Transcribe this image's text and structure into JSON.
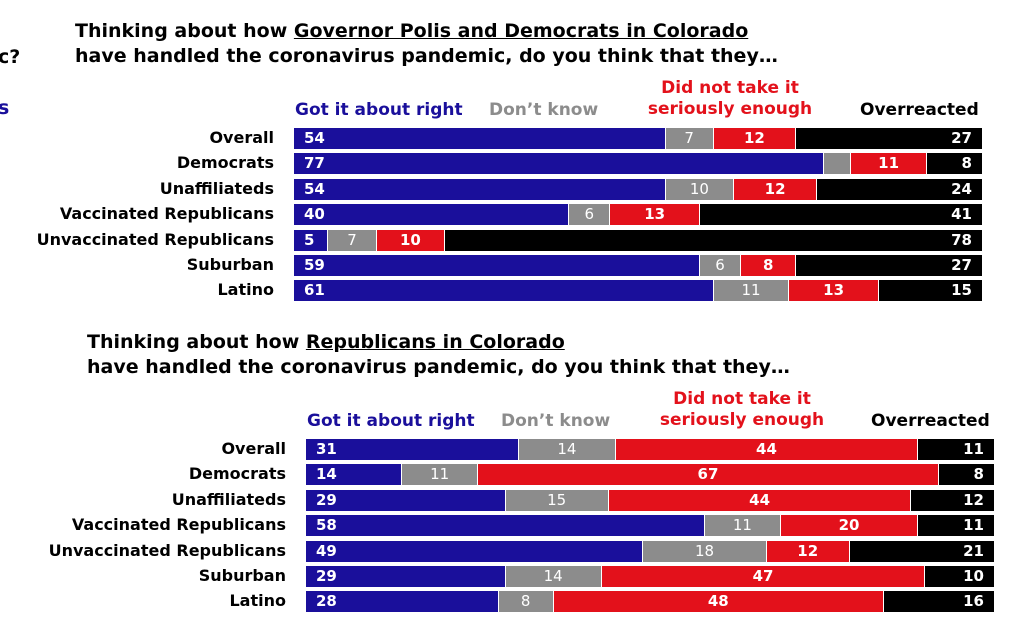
{
  "cut_text": {
    "left_question": "c?",
    "left_subtitle": "s"
  },
  "chart_data": [
    {
      "type": "bar",
      "stacked": true,
      "orientation": "horizontal",
      "title_line1_pre": "Thinking about how ",
      "title_line1_underlined": "Governor Polis and Democrats in Colorado",
      "title_line2": "have handled the coronavirus pandemic, do you think that they…",
      "legend": [
        {
          "label": "Got it about right",
          "color": "#1a0f9b"
        },
        {
          "label": "Don’t know",
          "color": "#8c8c8c"
        },
        {
          "label": "Did not take it seriously enough",
          "label_line1": "Did not take it",
          "label_line2": "seriously enough",
          "color": "#e3111b"
        },
        {
          "label": "Overreacted",
          "color": "#000000"
        }
      ],
      "categories": [
        "Overall",
        "Democrats",
        "Unaffiliateds",
        "Vaccinated Republicans",
        "Unvaccinated Republicans",
        "Suburban",
        "Latino"
      ],
      "series": [
        {
          "name": "Got it about right",
          "values": [
            54,
            77,
            54,
            40,
            5,
            59,
            61
          ]
        },
        {
          "name": "Don’t know",
          "values": [
            7,
            4,
            10,
            6,
            7,
            6,
            11
          ]
        },
        {
          "name": "Did not take it seriously enough",
          "values": [
            12,
            11,
            12,
            13,
            10,
            8,
            13
          ]
        },
        {
          "name": "Overreacted",
          "values": [
            27,
            8,
            24,
            41,
            78,
            27,
            15
          ]
        }
      ],
      "hidden_labels": [
        [
          1,
          1
        ]
      ]
    },
    {
      "type": "bar",
      "stacked": true,
      "orientation": "horizontal",
      "title_line1_pre": "Thinking about how ",
      "title_line1_underlined": "Republicans in Colorado",
      "title_line2": "have handled the coronavirus pandemic, do you think that they…",
      "legend": [
        {
          "label": "Got it about right",
          "color": "#1a0f9b"
        },
        {
          "label": "Don’t know",
          "color": "#8c8c8c"
        },
        {
          "label": "Did not take it seriously enough",
          "label_line1": "Did not take it",
          "label_line2": "seriously enough",
          "color": "#e3111b"
        },
        {
          "label": "Overreacted",
          "color": "#000000"
        }
      ],
      "categories": [
        "Overall",
        "Democrats",
        "Unaffiliateds",
        "Vaccinated Republicans",
        "Unvaccinated Republicans",
        "Suburban",
        "Latino"
      ],
      "series": [
        {
          "name": "Got it about right",
          "values": [
            31,
            14,
            29,
            58,
            49,
            29,
            28
          ]
        },
        {
          "name": "Don’t know",
          "values": [
            14,
            11,
            15,
            11,
            18,
            14,
            8
          ]
        },
        {
          "name": "Did not take it seriously enough",
          "values": [
            44,
            67,
            44,
            20,
            12,
            47,
            48
          ]
        },
        {
          "name": "Overreacted",
          "values": [
            11,
            8,
            12,
            11,
            21,
            10,
            16
          ]
        }
      ],
      "hidden_labels": []
    }
  ]
}
